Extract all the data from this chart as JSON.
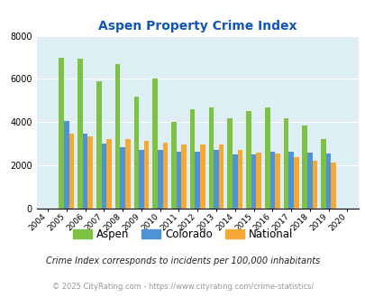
{
  "title": "Aspen Property Crime Index",
  "years": [
    2004,
    2005,
    2006,
    2007,
    2008,
    2009,
    2010,
    2011,
    2012,
    2013,
    2014,
    2015,
    2016,
    2017,
    2018,
    2019,
    2020
  ],
  "aspen": [
    null,
    7000,
    6950,
    5900,
    6700,
    5200,
    6000,
    4000,
    4600,
    4700,
    4200,
    4500,
    4700,
    4200,
    3850,
    3200,
    null
  ],
  "colorado": [
    null,
    4050,
    3450,
    3000,
    2850,
    2700,
    2700,
    2650,
    2650,
    2700,
    2500,
    2500,
    2650,
    2650,
    2600,
    2550,
    null
  ],
  "national": [
    null,
    3450,
    3350,
    3200,
    3200,
    3150,
    3050,
    2950,
    2950,
    2950,
    2700,
    2600,
    2550,
    2400,
    2200,
    2150,
    null
  ],
  "aspen_color": "#7dc242",
  "colorado_color": "#4f93d4",
  "national_color": "#f5a833",
  "plot_bg": "#ddeef5",
  "ylim": [
    0,
    8000
  ],
  "yticks": [
    0,
    2000,
    4000,
    6000,
    8000
  ],
  "subtitle": "Crime Index corresponds to incidents per 100,000 inhabitants",
  "footer": "© 2025 CityRating.com - https://www.cityrating.com/crime-statistics/",
  "title_color": "#1155bb",
  "subtitle_color": "#222222",
  "footer_color": "#999999"
}
